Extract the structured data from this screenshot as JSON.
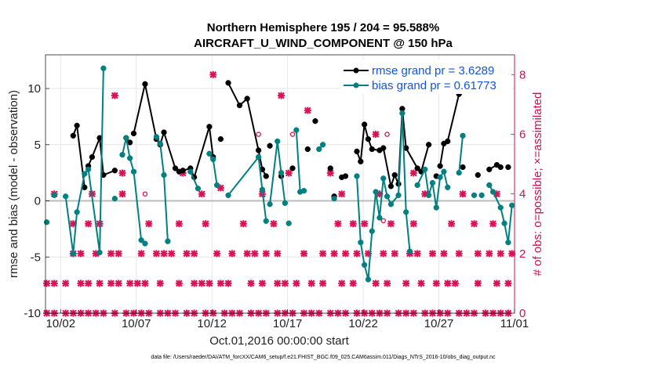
{
  "chart_data": {
    "type": "line",
    "title_line1": "Northern Hemisphere 195 / 204 = 95.588%",
    "title_line2": "AIRCRAFT_U_WIND_COMPONENT @ 150 hPa",
    "xlabel": "Oct.01,2016 00:00:00 start",
    "ylabel": "rmse and bias (model - observation)",
    "y2label": "# of obs: o=possible; ×=assimilated",
    "footnote": "data file: /Users/raeder/DAI/ATM_forcXX/CAM6_setup/f.e21.FHIST_BGC.f09_025.CAM6assim.011/Diags_NTrS_2016-10/obs_diag_output.nc",
    "xlim": [
      1,
      32
    ],
    "ylim": [
      -10,
      13
    ],
    "y2lim": [
      0,
      8.6667
    ],
    "xticks": [
      2,
      7,
      12,
      17,
      22,
      27,
      32
    ],
    "xticklabels": [
      "10/02",
      "10/07",
      "10/12",
      "10/17",
      "10/22",
      "10/27",
      "11/01"
    ],
    "yticks": [
      -10,
      -5,
      0,
      5,
      10
    ],
    "y2ticks": [
      0,
      2,
      4,
      6,
      8
    ],
    "grid": true,
    "legend_position": "top-right",
    "colors": {
      "rmse": "#000000",
      "bias": "#008080",
      "obs": "#dd1155",
      "zero": "#bbbbbb",
      "axis2": "#cc1155",
      "legend_text": "#1155dd"
    },
    "series": [
      {
        "name": "rmse grand pr = 3.6289",
        "points": [
          [
            2.83,
            5.8
          ],
          [
            3.08,
            6.7
          ],
          [
            3.58,
            1.2
          ],
          [
            3.83,
            3.1
          ],
          [
            4.08,
            3.9
          ],
          [
            4.58,
            5.6
          ],
          [
            4.83,
            2.3
          ],
          [
            5.58,
            2.7
          ],
          [
            6.33,
            5.6
          ],
          [
            6.58,
            5.2
          ],
          [
            6.83,
            6.0
          ],
          [
            7.58,
            10.4
          ],
          [
            8.33,
            5.5
          ],
          [
            8.58,
            5.0
          ],
          [
            8.83,
            6.1
          ],
          [
            9.58,
            2.9
          ],
          [
            9.83,
            2.6
          ],
          [
            10.08,
            2.7
          ],
          [
            10.58,
            2.9
          ],
          [
            10.83,
            2.1
          ],
          [
            11.83,
            6.6
          ],
          [
            12.08,
            3.9
          ],
          [
            12.58,
            5.5
          ],
          [
            13.08,
            10.5
          ],
          [
            13.83,
            8.5
          ],
          [
            14.33,
            9.1
          ],
          [
            15.08,
            4.5
          ],
          [
            15.33,
            2.8
          ],
          [
            15.58,
            2.2
          ],
          [
            15.83,
            4.9
          ],
          [
            16.58,
            2.2
          ],
          [
            17.33,
            2.9
          ],
          [
            18.33,
            4.6
          ],
          [
            18.83,
            7.1
          ],
          [
            19.83,
            2.9
          ],
          [
            20.08,
            0.4
          ],
          [
            20.58,
            2.1
          ],
          [
            20.83,
            2.2
          ],
          [
            21.58,
            4.4
          ],
          [
            21.83,
            3.5
          ],
          [
            22.08,
            6.8
          ],
          [
            22.33,
            5.5
          ],
          [
            22.58,
            4.6
          ],
          [
            23.08,
            4.5
          ],
          [
            23.33,
            4.7
          ],
          [
            23.83,
            1.3
          ],
          [
            24.08,
            2.3
          ],
          [
            24.33,
            1.5
          ],
          [
            24.58,
            8.2
          ],
          [
            24.83,
            4.7
          ],
          [
            25.58,
            2.9
          ],
          [
            25.83,
            2.6
          ],
          [
            26.33,
            5.0
          ],
          [
            26.83,
            2.2
          ],
          [
            27.08,
            3.1
          ],
          [
            27.33,
            5.1
          ],
          [
            27.58,
            5.3
          ],
          [
            28.33,
            9.5
          ],
          [
            28.58,
            3.0
          ],
          [
            29.58,
            2.3
          ],
          [
            30.33,
            2.8
          ],
          [
            30.83,
            3.2
          ],
          [
            31.08,
            3.0
          ],
          [
            31.58,
            3.0
          ]
        ],
        "segments": [
          [
            0,
            2
          ],
          [
            3,
            7
          ],
          [
            8,
            9
          ],
          [
            10,
            14
          ],
          [
            14,
            16
          ],
          [
            17,
            20
          ],
          [
            20,
            21
          ],
          [
            23,
            26
          ],
          [
            26,
            28
          ],
          [
            38,
            41
          ],
          [
            41,
            43
          ],
          [
            43,
            46
          ],
          [
            46,
            49
          ],
          [
            49,
            52
          ],
          [
            54,
            57
          ],
          [
            60,
            62
          ]
        ]
      },
      {
        "name": "bias grand pr = 0.61773",
        "points": [
          [
            1.08,
            -1.9
          ],
          [
            1.58,
            0.5
          ],
          [
            2.33,
            0.4
          ],
          [
            2.83,
            -4.7
          ],
          [
            3.08,
            -1.0
          ],
          [
            3.58,
            2.4
          ],
          [
            3.83,
            2.8
          ],
          [
            4.58,
            -4.6
          ],
          [
            4.83,
            11.8
          ],
          [
            5.58,
            0.2
          ],
          [
            6.08,
            4.1
          ],
          [
            6.33,
            5.6
          ],
          [
            6.58,
            3.8
          ],
          [
            6.83,
            2.6
          ],
          [
            7.33,
            -3.5
          ],
          [
            7.58,
            -3.8
          ],
          [
            8.33,
            5.7
          ],
          [
            8.58,
            5.1
          ],
          [
            8.83,
            2.3
          ],
          [
            9.08,
            -3.6
          ],
          [
            10.58,
            2.6
          ],
          [
            11.08,
            1.1
          ],
          [
            11.83,
            4.2
          ],
          [
            12.08,
            3.7
          ],
          [
            12.33,
            1.4
          ],
          [
            13.08,
            0.5
          ],
          [
            15.08,
            3.9
          ],
          [
            15.33,
            1.0
          ],
          [
            15.58,
            -1.8
          ],
          [
            15.83,
            -0.3
          ],
          [
            16.33,
            5.3
          ],
          [
            16.58,
            2.5
          ],
          [
            16.83,
            -0.2
          ],
          [
            17.08,
            -2.0
          ],
          [
            17.58,
            6.3
          ],
          [
            17.83,
            0.8
          ],
          [
            18.08,
            0.9
          ],
          [
            19.08,
            4.6
          ],
          [
            19.33,
            5.0
          ],
          [
            20.08,
            0.2
          ],
          [
            21.58,
            2.2
          ],
          [
            21.83,
            -3.7
          ],
          [
            22.08,
            -5.7
          ],
          [
            22.33,
            -7.0
          ],
          [
            22.58,
            -2.7
          ],
          [
            22.83,
            0.8
          ],
          [
            23.08,
            -1.5
          ],
          [
            23.33,
            2.0
          ],
          [
            23.58,
            0.4
          ],
          [
            23.83,
            -0.3
          ],
          [
            24.33,
            0.5
          ],
          [
            24.58,
            7.8
          ],
          [
            24.83,
            -1.0
          ],
          [
            25.08,
            -4.5
          ],
          [
            25.58,
            1.4
          ],
          [
            26.08,
            2.8
          ],
          [
            26.33,
            0.5
          ],
          [
            26.58,
            1.6
          ],
          [
            26.83,
            -0.6
          ],
          [
            27.08,
            2.1
          ],
          [
            27.33,
            2.6
          ],
          [
            27.58,
            1.2
          ],
          [
            28.33,
            2.5
          ],
          [
            28.58,
            5.8
          ],
          [
            29.33,
            0.5
          ],
          [
            29.83,
            0.5
          ],
          [
            30.33,
            1.4
          ],
          [
            30.58,
            0.8
          ],
          [
            31.08,
            -0.6
          ],
          [
            31.33,
            -2.0
          ],
          [
            31.58,
            -3.7
          ],
          [
            31.83,
            -0.4
          ]
        ],
        "segments": [
          [
            2,
            8
          ],
          [
            10,
            15
          ],
          [
            16,
            19
          ],
          [
            20,
            21
          ],
          [
            22,
            24
          ],
          [
            25,
            28
          ],
          [
            29,
            32
          ],
          [
            34,
            36
          ],
          [
            37,
            38
          ],
          [
            40,
            45
          ],
          [
            45,
            47
          ],
          [
            47,
            53
          ],
          [
            54,
            58
          ],
          [
            58,
            61
          ],
          [
            62,
            63
          ],
          [
            66,
            71
          ]
        ]
      }
    ],
    "obs_assimilated": [
      [
        1.08,
        0
      ],
      [
        1.58,
        0
      ],
      [
        2.33,
        0
      ],
      [
        2.83,
        0
      ],
      [
        3.33,
        0
      ],
      [
        3.83,
        0
      ],
      [
        4.33,
        0
      ],
      [
        4.83,
        0
      ],
      [
        5.58,
        0
      ],
      [
        6.33,
        0
      ],
      [
        6.83,
        0
      ],
      [
        7.33,
        0
      ],
      [
        7.83,
        0
      ],
      [
        8.58,
        0
      ],
      [
        9.08,
        0
      ],
      [
        9.58,
        0
      ],
      [
        10.33,
        0
      ],
      [
        10.83,
        0
      ],
      [
        11.58,
        0
      ],
      [
        12.08,
        0
      ],
      [
        12.83,
        0
      ],
      [
        13.33,
        0
      ],
      [
        13.83,
        0
      ],
      [
        14.58,
        0
      ],
      [
        15.08,
        0
      ],
      [
        15.58,
        0
      ],
      [
        16.33,
        0
      ],
      [
        16.83,
        0
      ],
      [
        17.33,
        0
      ],
      [
        18.08,
        0
      ],
      [
        18.58,
        0
      ],
      [
        19.08,
        0
      ],
      [
        19.83,
        0
      ],
      [
        20.33,
        0
      ],
      [
        20.83,
        0
      ],
      [
        21.58,
        0
      ],
      [
        22.08,
        0
      ],
      [
        22.58,
        0
      ],
      [
        23.08,
        0
      ],
      [
        23.58,
        0
      ],
      [
        24.33,
        0
      ],
      [
        24.83,
        0
      ],
      [
        25.33,
        0
      ],
      [
        26.08,
        0
      ],
      [
        26.58,
        0
      ],
      [
        27.08,
        0
      ],
      [
        27.58,
        0
      ],
      [
        28.33,
        0
      ],
      [
        28.83,
        0
      ],
      [
        29.33,
        0
      ],
      [
        30.08,
        0
      ],
      [
        30.58,
        0
      ],
      [
        31.08,
        0
      ],
      [
        31.58,
        0
      ],
      [
        1.08,
        1
      ],
      [
        1.58,
        1
      ],
      [
        2.33,
        1
      ],
      [
        3.33,
        1
      ],
      [
        3.83,
        1
      ],
      [
        4.58,
        1
      ],
      [
        5.33,
        1
      ],
      [
        5.83,
        1
      ],
      [
        6.58,
        1
      ],
      [
        7.08,
        1
      ],
      [
        7.58,
        1
      ],
      [
        8.58,
        1
      ],
      [
        9.83,
        1
      ],
      [
        10.83,
        1
      ],
      [
        11.33,
        1
      ],
      [
        11.83,
        1
      ],
      [
        12.58,
        1
      ],
      [
        13.08,
        1
      ],
      [
        14.58,
        1
      ],
      [
        15.33,
        1
      ],
      [
        16.33,
        1
      ],
      [
        16.83,
        1
      ],
      [
        17.58,
        1
      ],
      [
        18.58,
        1
      ],
      [
        19.33,
        1
      ],
      [
        20.58,
        1
      ],
      [
        21.33,
        1
      ],
      [
        22.83,
        1
      ],
      [
        23.58,
        1
      ],
      [
        24.83,
        1
      ],
      [
        25.83,
        1
      ],
      [
        26.83,
        1
      ],
      [
        27.58,
        1
      ],
      [
        28.08,
        1
      ],
      [
        29.58,
        1
      ],
      [
        30.83,
        1
      ],
      [
        31.58,
        1
      ],
      [
        2.83,
        2
      ],
      [
        3.33,
        2
      ],
      [
        4.33,
        2
      ],
      [
        5.33,
        2
      ],
      [
        5.83,
        2
      ],
      [
        7.33,
        2
      ],
      [
        8.33,
        2
      ],
      [
        8.83,
        2
      ],
      [
        9.33,
        2
      ],
      [
        10.33,
        2
      ],
      [
        10.83,
        2
      ],
      [
        12.33,
        2
      ],
      [
        13.33,
        2
      ],
      [
        14.33,
        2
      ],
      [
        14.83,
        2
      ],
      [
        15.58,
        2
      ],
      [
        16.33,
        2
      ],
      [
        18.08,
        2
      ],
      [
        19.33,
        2
      ],
      [
        20.08,
        2
      ],
      [
        20.83,
        2
      ],
      [
        21.58,
        2
      ],
      [
        22.33,
        2
      ],
      [
        23.33,
        2
      ],
      [
        24.08,
        2
      ],
      [
        25.08,
        2
      ],
      [
        25.58,
        2
      ],
      [
        26.58,
        2
      ],
      [
        27.33,
        2
      ],
      [
        28.33,
        2
      ],
      [
        29.58,
        2
      ],
      [
        30.33,
        2
      ],
      [
        31.08,
        2
      ],
      [
        31.83,
        2
      ],
      [
        2.83,
        3
      ],
      [
        3.83,
        3
      ],
      [
        4.58,
        3
      ],
      [
        7.83,
        3
      ],
      [
        9.83,
        3
      ],
      [
        11.58,
        3
      ],
      [
        14.08,
        3
      ],
      [
        16.08,
        3
      ],
      [
        20.33,
        3
      ],
      [
        21.33,
        3
      ],
      [
        22.08,
        3
      ],
      [
        23.83,
        3
      ],
      [
        25.33,
        3
      ],
      [
        27.83,
        3
      ],
      [
        29.33,
        3
      ],
      [
        30.58,
        3
      ],
      [
        1.58,
        4
      ],
      [
        4.08,
        4
      ],
      [
        6.08,
        4
      ],
      [
        11.33,
        4
      ],
      [
        15.33,
        4
      ],
      [
        20.58,
        4
      ],
      [
        23.08,
        4
      ],
      [
        26.08,
        4
      ],
      [
        28.58,
        4
      ],
      [
        30.83,
        4
      ],
      [
        6.08,
        4.7
      ],
      [
        10.08,
        4.7
      ],
      [
        12.58,
        4.2
      ],
      [
        17.08,
        4.7
      ],
      [
        19.83,
        4.7
      ],
      [
        25.33,
        4.7
      ],
      [
        5.58,
        7.3
      ],
      [
        12.08,
        8.0
      ],
      [
        16.58,
        7.3
      ],
      [
        22.83,
        6.0
      ],
      [
        18.33,
        6.8
      ]
    ],
    "obs_possible": [
      [
        7.58,
        4
      ],
      [
        15.08,
        6
      ],
      [
        15.58,
        3.1
      ],
      [
        17.33,
        6
      ],
      [
        23.33,
        3.1
      ],
      [
        23.58,
        6
      ],
      [
        27.58,
        1
      ],
      [
        29.58,
        1
      ]
    ]
  }
}
